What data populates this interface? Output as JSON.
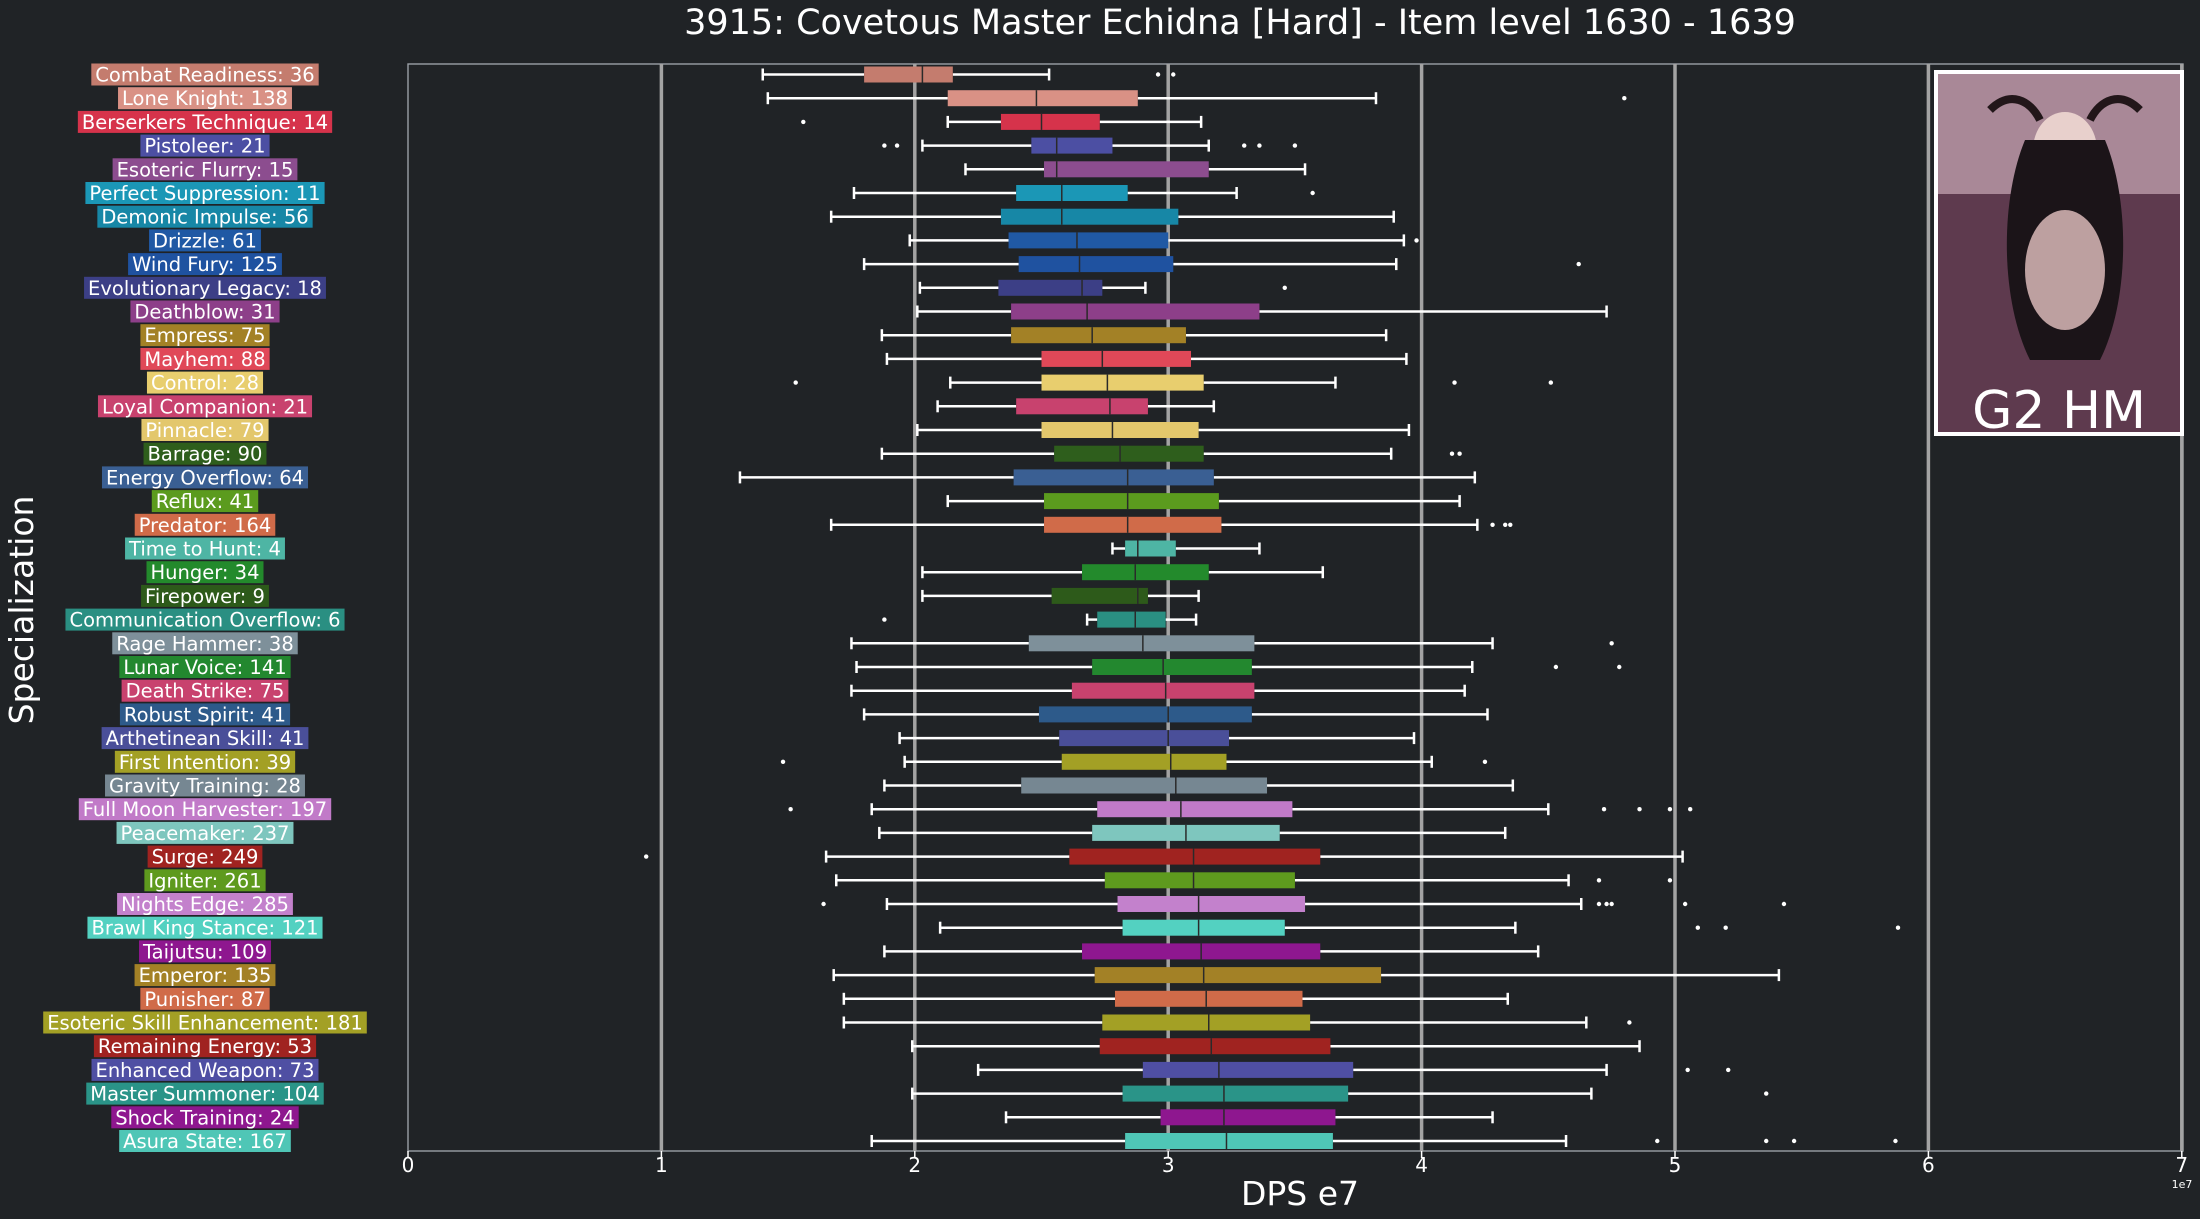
{
  "chart_data": {
    "type": "box",
    "title": "3915: Covetous Master Echidna [Hard] - Item level 1630 - 1639",
    "xlabel": "DPS e7",
    "ylabel": "Specialization",
    "xlim": [
      0,
      7
    ],
    "x_ticks": [
      0,
      1,
      2,
      3,
      4,
      5,
      6,
      7
    ],
    "x_multiplier_label": "1e7",
    "reference_lines": [
      1,
      2,
      3,
      4,
      5,
      6,
      7
    ],
    "grid": false,
    "badge_text": "G2 HM",
    "series": [
      {
        "label": "Combat Readiness: 36",
        "color": "#c47c6e",
        "min": 1.4,
        "q1": 1.8,
        "median": 2.03,
        "q3": 2.15,
        "max": 2.53,
        "outliers": [
          2.96,
          3.02
        ]
      },
      {
        "label": "Lone Knight: 138",
        "color": "#d99185",
        "min": 1.42,
        "q1": 2.13,
        "median": 2.48,
        "q3": 2.88,
        "max": 3.82,
        "outliers": [
          4.8
        ]
      },
      {
        "label": "Berserkers Technique: 14",
        "color": "#d6334b",
        "min": 2.13,
        "q1": 2.34,
        "median": 2.5,
        "q3": 2.73,
        "max": 3.13,
        "outliers": [
          1.56
        ]
      },
      {
        "label": "Pistoleer: 21",
        "color": "#4c4fa3",
        "min": 2.03,
        "q1": 2.46,
        "median": 2.56,
        "q3": 2.78,
        "max": 3.16,
        "outliers": [
          1.88,
          1.93,
          3.3,
          3.36,
          3.5
        ]
      },
      {
        "label": "Esoteric Flurry: 15",
        "color": "#8c4d8f",
        "min": 2.2,
        "q1": 2.51,
        "median": 2.56,
        "q3": 3.16,
        "max": 3.54,
        "outliers": []
      },
      {
        "label": "Perfect Suppression: 11",
        "color": "#1b97b6",
        "min": 1.76,
        "q1": 2.4,
        "median": 2.58,
        "q3": 2.84,
        "max": 3.27,
        "outliers": [
          3.57
        ]
      },
      {
        "label": "Demonic Impulse: 56",
        "color": "#1787a6",
        "min": 1.67,
        "q1": 2.34,
        "median": 2.58,
        "q3": 3.04,
        "max": 3.89,
        "outliers": []
      },
      {
        "label": "Drizzle: 61",
        "color": "#2059a4",
        "min": 1.98,
        "q1": 2.37,
        "median": 2.64,
        "q3": 3.0,
        "max": 3.93,
        "outliers": [
          3.98
        ]
      },
      {
        "label": "Wind Fury: 125",
        "color": "#1f52a0",
        "min": 1.8,
        "q1": 2.41,
        "median": 2.65,
        "q3": 3.02,
        "max": 3.9,
        "outliers": [
          4.62
        ]
      },
      {
        "label": "Evolutionary Legacy: 18",
        "color": "#3c3f86",
        "min": 2.02,
        "q1": 2.33,
        "median": 2.66,
        "q3": 2.74,
        "max": 2.91,
        "outliers": [
          3.46
        ]
      },
      {
        "label": "Deathblow: 31",
        "color": "#8d3f89",
        "min": 2.01,
        "q1": 2.38,
        "median": 2.68,
        "q3": 3.36,
        "max": 4.73,
        "outliers": []
      },
      {
        "label": "Empress: 75",
        "color": "#a38126",
        "min": 1.87,
        "q1": 2.38,
        "median": 2.7,
        "q3": 3.07,
        "max": 3.86,
        "outliers": []
      },
      {
        "label": "Mayhem: 88",
        "color": "#e04858",
        "min": 1.89,
        "q1": 2.5,
        "median": 2.74,
        "q3": 3.09,
        "max": 3.94,
        "outliers": []
      },
      {
        "label": "Control: 28",
        "color": "#e8ce6e",
        "min": 2.14,
        "q1": 2.5,
        "median": 2.76,
        "q3": 3.14,
        "max": 3.66,
        "outliers": [
          1.53,
          4.13,
          4.51
        ]
      },
      {
        "label": "Loyal Companion: 21",
        "color": "#c8426e",
        "min": 2.09,
        "q1": 2.4,
        "median": 2.77,
        "q3": 2.92,
        "max": 3.18,
        "outliers": []
      },
      {
        "label": "Pinnacle: 79",
        "color": "#e3c76c",
        "min": 2.01,
        "q1": 2.5,
        "median": 2.78,
        "q3": 3.12,
        "max": 3.95,
        "outliers": []
      },
      {
        "label": "Barrage: 90",
        "color": "#2e5e1c",
        "min": 1.87,
        "q1": 2.55,
        "median": 2.81,
        "q3": 3.14,
        "max": 3.88,
        "outliers": [
          4.12,
          4.15
        ]
      },
      {
        "label": "Energy Overflow: 64",
        "color": "#3a5f93",
        "min": 1.31,
        "q1": 2.39,
        "median": 2.84,
        "q3": 3.18,
        "max": 4.21,
        "outliers": []
      },
      {
        "label": "Reflux: 41",
        "color": "#5b9b1e",
        "min": 2.13,
        "q1": 2.51,
        "median": 2.84,
        "q3": 3.2,
        "max": 4.15,
        "outliers": []
      },
      {
        "label": "Predator: 164",
        "color": "#d06b49",
        "min": 1.67,
        "q1": 2.51,
        "median": 2.84,
        "q3": 3.21,
        "max": 4.22,
        "outliers": [
          4.28,
          4.33,
          4.35
        ]
      },
      {
        "label": "Time to Hunt: 4",
        "color": "#4eb5a4",
        "min": 2.78,
        "q1": 2.83,
        "median": 2.88,
        "q3": 3.03,
        "max": 3.36,
        "outliers": []
      },
      {
        "label": "Hunger: 34",
        "color": "#238a2c",
        "min": 2.03,
        "q1": 2.66,
        "median": 2.87,
        "q3": 3.16,
        "max": 3.61,
        "outliers": []
      },
      {
        "label": "Firepower: 9",
        "color": "#2d5a1a",
        "min": 2.03,
        "q1": 2.54,
        "median": 2.88,
        "q3": 2.92,
        "max": 3.12,
        "outliers": []
      },
      {
        "label": "Communication Overflow: 6",
        "color": "#2a8f82",
        "min": 2.68,
        "q1": 2.72,
        "median": 2.87,
        "q3": 2.99,
        "max": 3.11,
        "outliers": [
          1.88
        ]
      },
      {
        "label": "Rage Hammer: 38",
        "color": "#7e909a",
        "min": 1.75,
        "q1": 2.45,
        "median": 2.9,
        "q3": 3.34,
        "max": 4.28,
        "outliers": [
          4.75
        ]
      },
      {
        "label": "Lunar Voice: 141",
        "color": "#23882f",
        "min": 1.77,
        "q1": 2.7,
        "median": 2.98,
        "q3": 3.33,
        "max": 4.2,
        "outliers": [
          4.53,
          4.78
        ]
      },
      {
        "label": "Death Strike: 75",
        "color": "#c8426e",
        "min": 1.75,
        "q1": 2.62,
        "median": 2.99,
        "q3": 3.34,
        "max": 4.17,
        "outliers": []
      },
      {
        "label": "Robust Spirit: 41",
        "color": "#2d5a8a",
        "min": 1.8,
        "q1": 2.49,
        "median": 3.0,
        "q3": 3.33,
        "max": 4.26,
        "outliers": []
      },
      {
        "label": "Arthetinean Skill: 41",
        "color": "#4a4f99",
        "min": 1.94,
        "q1": 2.57,
        "median": 3.0,
        "q3": 3.24,
        "max": 3.97,
        "outliers": []
      },
      {
        "label": "First Intention: 39",
        "color": "#a3a025",
        "min": 1.96,
        "q1": 2.58,
        "median": 3.01,
        "q3": 3.23,
        "max": 4.04,
        "outliers": [
          1.48,
          4.25
        ]
      },
      {
        "label": "Gravity Training: 28",
        "color": "#768792",
        "min": 1.88,
        "q1": 2.42,
        "median": 3.03,
        "q3": 3.39,
        "max": 4.36,
        "outliers": []
      },
      {
        "label": "Full Moon Harvester: 197",
        "color": "#c17ac8",
        "min": 1.83,
        "q1": 2.72,
        "median": 3.05,
        "q3": 3.49,
        "max": 4.5,
        "outliers": [
          1.51,
          4.72,
          4.86,
          4.98,
          5.06
        ]
      },
      {
        "label": "Peacemaker: 237",
        "color": "#7ec6be",
        "min": 1.86,
        "q1": 2.7,
        "median": 3.07,
        "q3": 3.44,
        "max": 4.33,
        "outliers": []
      },
      {
        "label": "Surge: 249",
        "color": "#a02320",
        "min": 1.65,
        "q1": 2.61,
        "median": 3.1,
        "q3": 3.6,
        "max": 5.03,
        "outliers": [
          0.94
        ]
      },
      {
        "label": "Igniter: 261",
        "color": "#5e9a1e",
        "min": 1.69,
        "q1": 2.75,
        "median": 3.1,
        "q3": 3.5,
        "max": 4.58,
        "outliers": [
          4.7,
          4.98
        ]
      },
      {
        "label": "Nights Edge: 285",
        "color": "#c381cc",
        "min": 1.89,
        "q1": 2.8,
        "median": 3.12,
        "q3": 3.54,
        "max": 4.63,
        "outliers": [
          1.64,
          4.7,
          4.73,
          4.75,
          5.04,
          5.43
        ]
      },
      {
        "label": "Brawl King Stance: 121",
        "color": "#53d1c1",
        "min": 2.1,
        "q1": 2.82,
        "median": 3.12,
        "q3": 3.46,
        "max": 4.37,
        "outliers": [
          5.09,
          5.2,
          5.88
        ]
      },
      {
        "label": "Taijutsu: 109",
        "color": "#8e178f",
        "min": 1.88,
        "q1": 2.66,
        "median": 3.13,
        "q3": 3.6,
        "max": 4.46,
        "outliers": []
      },
      {
        "label": "Emperor: 135",
        "color": "#a38126",
        "min": 1.68,
        "q1": 2.71,
        "median": 3.14,
        "q3": 3.84,
        "max": 5.41,
        "outliers": []
      },
      {
        "label": "Punisher: 87",
        "color": "#d06b49",
        "min": 1.72,
        "q1": 2.79,
        "median": 3.15,
        "q3": 3.53,
        "max": 4.34,
        "outliers": []
      },
      {
        "label": "Esoteric Skill Enhancement: 181",
        "color": "#a3a025",
        "min": 1.72,
        "q1": 2.74,
        "median": 3.16,
        "q3": 3.56,
        "max": 4.65,
        "outliers": [
          4.82
        ]
      },
      {
        "label": "Remaining Energy: 53",
        "color": "#a02320",
        "min": 1.99,
        "q1": 2.73,
        "median": 3.17,
        "q3": 3.64,
        "max": 4.86,
        "outliers": []
      },
      {
        "label": "Enhanced Weapon: 73",
        "color": "#4f4fa3",
        "min": 2.25,
        "q1": 2.9,
        "median": 3.2,
        "q3": 3.73,
        "max": 4.73,
        "outliers": [
          5.05,
          5.21
        ]
      },
      {
        "label": "Master Summoner: 104",
        "color": "#2a9488",
        "min": 1.99,
        "q1": 2.82,
        "median": 3.22,
        "q3": 3.71,
        "max": 4.67,
        "outliers": [
          5.36
        ]
      },
      {
        "label": "Shock Training: 24",
        "color": "#8e178f",
        "min": 2.36,
        "q1": 2.97,
        "median": 3.22,
        "q3": 3.66,
        "max": 4.28,
        "outliers": []
      },
      {
        "label": "Asura State: 167",
        "color": "#4fc6b6",
        "min": 1.83,
        "q1": 2.83,
        "median": 3.23,
        "q3": 3.65,
        "max": 4.57,
        "outliers": [
          4.93,
          5.36,
          5.47,
          5.87
        ]
      }
    ]
  }
}
